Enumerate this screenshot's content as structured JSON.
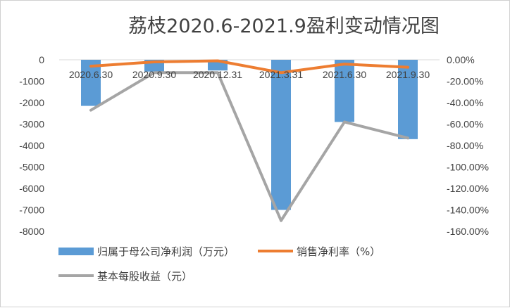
{
  "chart_data": {
    "type": "bar",
    "title": "荔枝2020.6-2021.9盈利变动情况图",
    "categories": [
      "2020.6.30",
      "2020.9.30",
      "2020.12.31",
      "2021.3.31",
      "2021.6.30",
      "2021.9.30"
    ],
    "y_left": {
      "range": [
        -8000,
        0
      ],
      "ticks": [
        "0",
        "-1000",
        "-2000",
        "-3000",
        "-4000",
        "-5000",
        "-6000",
        "-7000",
        "-8000"
      ]
    },
    "y_right": {
      "range": [
        -160,
        0
      ],
      "ticks": [
        "0.00%",
        "-20.00%",
        "-40.00%",
        "-60.00%",
        "-80.00%",
        "-100.00%",
        "-120.00%",
        "-140.00%",
        "-160.00%"
      ]
    },
    "series": [
      {
        "name": "归属于母公司净利润（万元）",
        "kind": "bar",
        "axis": "left",
        "color": "#5b9bd5",
        "values": [
          -2150,
          -550,
          -500,
          -7000,
          -2900,
          -3700
        ]
      },
      {
        "name": "销售净利率（%）",
        "kind": "line",
        "axis": "right",
        "color": "#ed7d31",
        "values": [
          -6,
          -2,
          -1,
          -12,
          -4,
          -7
        ]
      },
      {
        "name": "基本每股收益（元）",
        "kind": "line",
        "axis": "right",
        "color": "#a5a5a5",
        "values": [
          -47,
          -12,
          -12,
          -150,
          -58,
          -73
        ]
      }
    ],
    "grid": false,
    "legend_position": "bottom"
  }
}
